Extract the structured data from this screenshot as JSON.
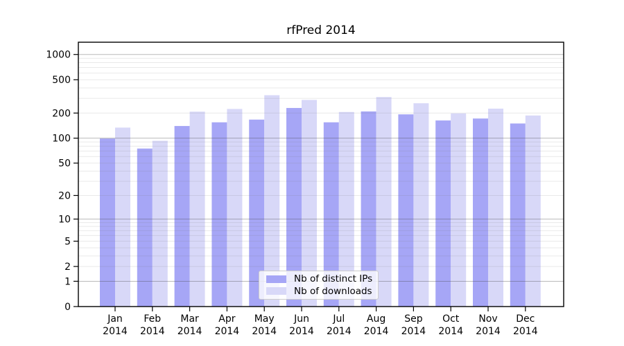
{
  "title": "rfPred 2014",
  "colors": {
    "distinct_ips": "#a6a6f6",
    "downloads": "#d8d8f8",
    "grid_minor": "rgba(120,120,120,0.16)",
    "grid_major": "rgba(70,70,70,0.38)",
    "axis": "#000000",
    "background": "#ffffff"
  },
  "legend": {
    "items": [
      {
        "label": "Nb of distinct IPs",
        "key": "distinct_ips"
      },
      {
        "label": "Nb of downloads",
        "key": "downloads"
      }
    ]
  },
  "chart_data": {
    "type": "bar",
    "title": "rfPred 2014",
    "categories": [
      {
        "month": "Jan",
        "year": "2014"
      },
      {
        "month": "Feb",
        "year": "2014"
      },
      {
        "month": "Mar",
        "year": "2014"
      },
      {
        "month": "Apr",
        "year": "2014"
      },
      {
        "month": "May",
        "year": "2014"
      },
      {
        "month": "Jun",
        "year": "2014"
      },
      {
        "month": "Jul",
        "year": "2014"
      },
      {
        "month": "Aug",
        "year": "2014"
      },
      {
        "month": "Sep",
        "year": "2014"
      },
      {
        "month": "Oct",
        "year": "2014"
      },
      {
        "month": "Nov",
        "year": "2014"
      },
      {
        "month": "Dec",
        "year": "2014"
      }
    ],
    "series": [
      {
        "name": "Nb of distinct IPs",
        "key": "distinct_ips",
        "values": [
          99,
          75,
          140,
          155,
          167,
          230,
          155,
          209,
          193,
          163,
          172,
          150
        ]
      },
      {
        "name": "Nb of downloads",
        "key": "downloads",
        "values": [
          134,
          93,
          208,
          224,
          327,
          287,
          206,
          311,
          262,
          198,
          226,
          187
        ]
      }
    ],
    "y_scale": "log10(1+y)",
    "y_ticks": [
      0,
      1,
      2,
      5,
      10,
      20,
      50,
      100,
      200,
      500,
      1000
    ],
    "y_minor_gridlines": [
      3,
      4,
      6,
      7,
      8,
      9,
      30,
      40,
      60,
      70,
      80,
      90,
      300,
      400,
      600,
      700,
      800,
      900
    ],
    "y_major_gridlines": [
      1,
      10,
      100,
      1000
    ],
    "ylim": [
      0,
      1400
    ],
    "grid": true,
    "legend_position": "lower center"
  }
}
